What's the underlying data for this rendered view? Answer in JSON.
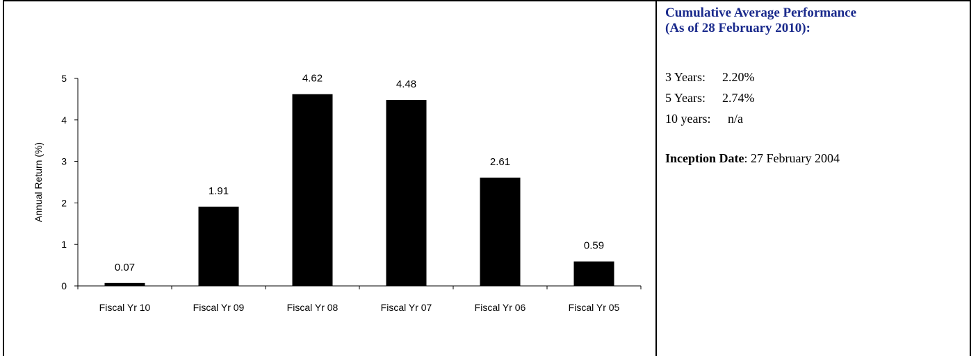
{
  "chart_data": {
    "type": "bar",
    "categories": [
      "Fiscal Yr 10",
      "Fiscal Yr 09",
      "Fiscal Yr 08",
      "Fiscal Yr 07",
      "Fiscal Yr 06",
      "Fiscal Yr 05"
    ],
    "values": [
      0.07,
      1.91,
      4.62,
      4.48,
      2.61,
      0.59
    ],
    "data_labels": [
      "0.07",
      "1.91",
      "4.62",
      "4.48",
      "2.61",
      "0.59"
    ],
    "title": "",
    "xlabel": "",
    "ylabel": "Annual Return (%)",
    "ylim": [
      0,
      5
    ],
    "yticks": [
      "0",
      "1",
      "2",
      "3",
      "4",
      "5"
    ],
    "grid": false,
    "bar_color": "#000000"
  },
  "sidebar": {
    "title_line1": "Cumulative Average Performance",
    "title_line2": "(As of 28 February 2010):",
    "title_color": "#1a2a8c",
    "rows": [
      {
        "label": "3 Years:",
        "value": "2.20%"
      },
      {
        "label": "5 Years:",
        "value": "2.74%"
      },
      {
        "label": "10 years:",
        "value": "n/a"
      }
    ],
    "inception_label": "Inception Date",
    "inception_value": ": 27 February 2004"
  }
}
